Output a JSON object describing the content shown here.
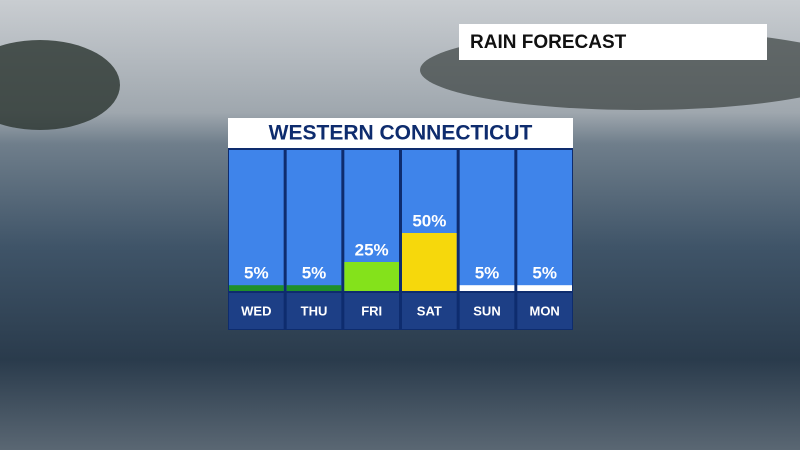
{
  "chart_data": {
    "type": "bar",
    "header": "RAIN FORECAST",
    "title": "WESTERN CONNECTICUT",
    "categories": [
      "WED",
      "THU",
      "FRI",
      "SAT",
      "SUN",
      "MON"
    ],
    "values": [
      5,
      5,
      25,
      50,
      5,
      5
    ],
    "value_labels": [
      "5%",
      "5%",
      "25%",
      "50%",
      "5%",
      "5%"
    ],
    "colors": [
      "#1f8f2a",
      "#1f8f2a",
      "#84e21b",
      "#f6d80c",
      "#ffffff",
      "#ffffff"
    ],
    "ylim": [
      0,
      100
    ]
  }
}
